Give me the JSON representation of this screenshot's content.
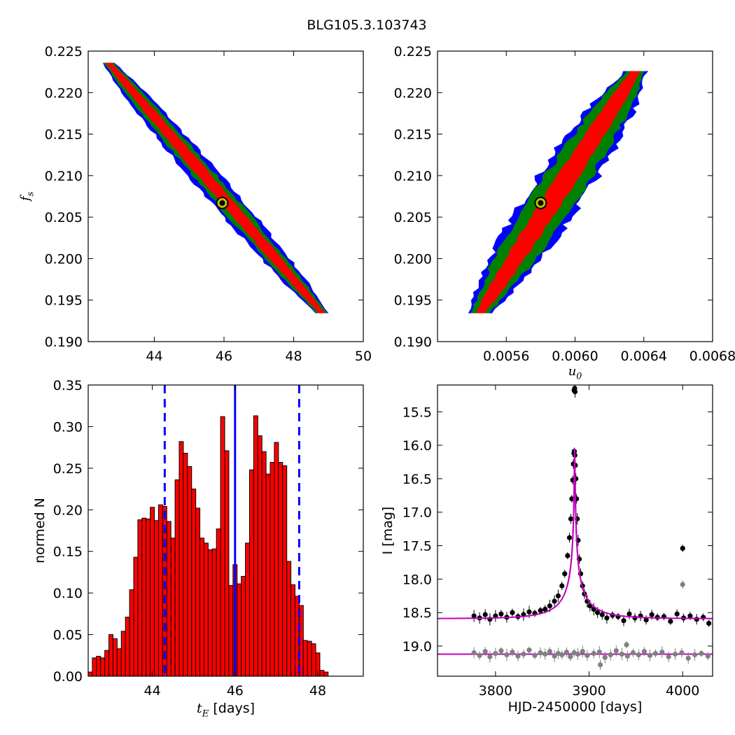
{
  "suptitle": "BLG105.3.103743",
  "colors": {
    "sigma3": "#0000ff",
    "sigma2": "#008000",
    "sigma1": "#ff0000",
    "best_fit_outer": "#000000",
    "best_fit_inner": "#bfbf00",
    "hist_bar": "#ff0000",
    "median_line": "#0000ff",
    "model": "#bf00bf",
    "data": "#000000",
    "residual": "#808080"
  },
  "chart_data": [
    {
      "id": "tE_fs",
      "type": "scatter",
      "title": "",
      "xlabel": "",
      "ylabel": "f_s",
      "xlim": [
        42.1,
        50
      ],
      "ylim": [
        0.19,
        0.225
      ],
      "xticks": [
        44,
        46,
        48,
        50
      ],
      "xtick_labels": [
        "44",
        "46",
        "48",
        "50"
      ],
      "yticks": [
        0.19,
        0.195,
        0.2,
        0.205,
        0.21,
        0.215,
        0.22,
        0.225
      ],
      "ytick_labels": [
        "0.190",
        "0.195",
        "0.200",
        "0.205",
        "0.210",
        "0.215",
        "0.220",
        "0.225"
      ],
      "ridge": {
        "x": [
          42.7,
          48.8
        ],
        "y": [
          0.2235,
          0.1935
        ]
      },
      "half_widths": {
        "sigma3": 0.45,
        "sigma2": 0.32,
        "sigma1": 0.17
      },
      "best_fit": {
        "x": 45.95,
        "y": 0.2067
      }
    },
    {
      "id": "u0_fs",
      "type": "scatter",
      "title": "",
      "xlabel": "u_0",
      "ylabel": "",
      "xlim": [
        0.0052,
        0.0068
      ],
      "ylim": [
        0.19,
        0.225
      ],
      "xticks": [
        0.0056,
        0.006,
        0.0064,
        0.0068
      ],
      "xtick_labels": [
        "0.0056",
        "0.0060",
        "0.0064",
        "0.0068"
      ],
      "yticks": [
        0.19,
        0.195,
        0.2,
        0.205,
        0.21,
        0.215,
        0.22,
        0.225
      ],
      "ytick_labels": [
        "0.190",
        "0.195",
        "0.200",
        "0.205",
        "0.210",
        "0.215",
        "0.220",
        "0.225"
      ],
      "ridge": {
        "x": [
          0.00545,
          0.00635
        ],
        "y": [
          0.1935,
          0.2225
        ]
      },
      "half_widths": {
        "sigma3": 0.00017,
        "sigma2": 0.00013,
        "sigma1": 6e-05
      },
      "best_fit": {
        "x": 0.0058,
        "y": 0.2067
      }
    },
    {
      "id": "tE_hist",
      "type": "bar",
      "title": "",
      "xlabel": "t_E [days]",
      "ylabel": "normed N",
      "xlim": [
        42.45,
        49.1
      ],
      "ylim": [
        0,
        0.35
      ],
      "xticks": [
        44,
        46,
        48
      ],
      "xtick_labels": [
        "44",
        "46",
        "48"
      ],
      "yticks": [
        0,
        0.05,
        0.1,
        0.15,
        0.2,
        0.25,
        0.3,
        0.35
      ],
      "ytick_labels": [
        "0.00",
        "0.05",
        "0.10",
        "0.15",
        "0.20",
        "0.25",
        "0.30",
        "0.35"
      ],
      "bin_start": 42.45,
      "bin_width": 0.1,
      "values": [
        0.005,
        0.022,
        0.024,
        0.022,
        0.031,
        0.05,
        0.045,
        0.033,
        0.054,
        0.071,
        0.104,
        0.143,
        0.188,
        0.19,
        0.189,
        0.203,
        0.187,
        0.206,
        0.204,
        0.186,
        0.166,
        0.236,
        0.282,
        0.268,
        0.252,
        0.225,
        0.202,
        0.166,
        0.16,
        0.152,
        0.153,
        0.177,
        0.312,
        0.271,
        0.109,
        0.134,
        0.111,
        0.12,
        0.16,
        0.248,
        0.313,
        0.289,
        0.27,
        0.243,
        0.257,
        0.281,
        0.257,
        0.253,
        0.138,
        0.11,
        0.096,
        0.085,
        0.043,
        0.042,
        0.039,
        0.028,
        0.007,
        0.005
      ],
      "median": 46.0,
      "bounds": [
        44.3,
        47.55
      ]
    },
    {
      "id": "lightcurve",
      "type": "scatter",
      "title": "",
      "xlabel": "HJD-2450000 [days]",
      "ylabel": "I [mag]",
      "xlim": [
        3738,
        4032
      ],
      "ylim": [
        19.45,
        15.1
      ],
      "inverted_y": true,
      "xticks": [
        3800,
        3900,
        4000
      ],
      "xtick_labels": [
        "3800",
        "3900",
        "4000"
      ],
      "yticks": [
        15.5,
        16.0,
        16.5,
        17.0,
        17.5,
        18.0,
        18.5,
        19.0
      ],
      "ytick_labels": [
        "15.5",
        "16.0",
        "16.5",
        "17.0",
        "17.5",
        "18.0",
        "18.5",
        "19.0"
      ],
      "model": {
        "t0": 3884.6,
        "tE": 46.0,
        "u0": 0.0058,
        "fs": 0.2067,
        "baseline": 18.59,
        "peak": 16.05
      },
      "residual_offset": 19.12,
      "series": [
        {
          "name": "",
          "role": "data",
          "x": [
            3777,
            3783,
            3789,
            3794,
            3800,
            3806,
            3812,
            3818,
            3824,
            3830,
            3836,
            3842,
            3848,
            3853,
            3858,
            3863,
            3867,
            3871,
            3874,
            3877,
            3879,
            3880.5,
            3881.5,
            3882.5,
            3883.2,
            3883.8,
            3884.2,
            3884.8,
            3885.3,
            3885.9,
            3886.6,
            3887.4,
            3888.3,
            3889.5,
            3891,
            3893,
            3895,
            3898,
            3901,
            3905,
            3909,
            3914,
            3919,
            3925,
            3931,
            3937,
            3943,
            3949,
            3955,
            3961,
            3967,
            3973,
            3980,
            3987,
            3994,
            4001,
            4008,
            4015,
            4022,
            4028,
            3884.0,
            3884.6,
            3885.0,
            4000
          ],
          "y": [
            18.55,
            18.58,
            18.53,
            18.6,
            18.55,
            18.52,
            18.57,
            18.5,
            18.56,
            18.53,
            18.49,
            18.51,
            18.47,
            18.45,
            18.4,
            18.33,
            18.25,
            18.1,
            17.92,
            17.65,
            17.38,
            17.1,
            16.8,
            16.52,
            16.28,
            16.12,
            16.09,
            16.15,
            16.3,
            16.5,
            16.8,
            17.1,
            17.42,
            17.7,
            17.92,
            18.1,
            18.22,
            18.33,
            18.4,
            18.45,
            18.5,
            18.53,
            18.58,
            18.54,
            18.56,
            18.62,
            18.52,
            18.58,
            18.55,
            18.61,
            18.53,
            18.57,
            18.56,
            18.63,
            18.52,
            18.58,
            18.55,
            18.6,
            18.57,
            18.66,
            15.18,
            15.15,
            15.2,
            17.54
          ]
        },
        {
          "name": "",
          "role": "residual",
          "x": [
            3777,
            3783,
            3789,
            3794,
            3800,
            3806,
            3812,
            3818,
            3824,
            3830,
            3836,
            3842,
            3848,
            3853,
            3858,
            3863,
            3867,
            3871,
            3876,
            3880,
            3884,
            3888,
            3893,
            3898,
            3905,
            3911,
            3917,
            3923,
            3929,
            3935,
            3941,
            3947,
            3953,
            3959,
            3965,
            3971,
            3978,
            3985,
            3992,
            3999,
            4006,
            4013,
            4020,
            4027,
            4000,
            3940,
            3912
          ],
          "y": [
            19.1,
            19.14,
            19.08,
            19.16,
            19.11,
            19.07,
            19.13,
            19.09,
            19.15,
            19.12,
            19.06,
            19.14,
            19.1,
            19.12,
            19.08,
            19.15,
            19.11,
            19.13,
            19.09,
            19.16,
            19.1,
            19.12,
            19.08,
            19.14,
            19.11,
            19.09,
            19.17,
            19.13,
            19.07,
            19.12,
            19.15,
            19.1,
            19.13,
            19.08,
            19.14,
            19.11,
            19.09,
            19.16,
            19.12,
            19.1,
            19.18,
            19.13,
            19.11,
            19.15,
            18.08,
            18.98,
            19.28
          ]
        }
      ]
    }
  ]
}
